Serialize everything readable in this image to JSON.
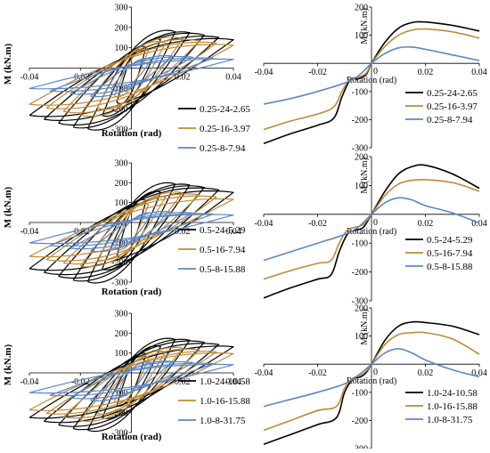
{
  "chart_data": [
    {
      "id": "hyst-025",
      "type": "line",
      "style": "hysteresis",
      "xlabel": "Rotation (rad)",
      "ylabel": "M (kN.m)",
      "xlim": [
        -0.04,
        0.04
      ],
      "ylim": [
        -300,
        300
      ],
      "xticks": [
        -0.04,
        -0.02,
        0.02,
        0.04
      ],
      "yticks": [
        -300,
        -200,
        -100,
        100,
        200,
        300
      ],
      "xtick_labels": [
        "-0.04",
        "-0.02",
        "0.02",
        "0.04"
      ],
      "ytick_labels": [
        "-300",
        "-200",
        "-100",
        "100",
        "200",
        "300"
      ],
      "grid": false,
      "legend_position": "bottom-right",
      "series": [
        {
          "name": "0.25-24-2.65",
          "color": "#000000",
          "peak_pos": 180,
          "peak_neg": -300,
          "x_at_peak": 0.02,
          "cycles": 7
        },
        {
          "name": "0.25-16-3.97",
          "color": "#c08a34",
          "peak_pos": 145,
          "peak_neg": -230,
          "x_at_peak": 0.02,
          "cycles": 6
        },
        {
          "name": "0.25-8-7.94",
          "color": "#5b86c8",
          "peak_pos": 60,
          "peak_neg": -140,
          "x_at_peak": 0.015,
          "cycles": 5
        }
      ]
    },
    {
      "id": "env-025",
      "type": "line",
      "xlabel": "Rotation (rad)",
      "ylabel": "M (kN.m)",
      "xlim": [
        -0.04,
        0.04
      ],
      "ylim": [
        -300,
        200
      ],
      "xticks": [
        -0.04,
        -0.02,
        0.02,
        0.04
      ],
      "yticks": [
        -300,
        -200,
        -100,
        100,
        200
      ],
      "xtick_labels": [
        "-0.04",
        "-0.02",
        "0.02",
        "0.04"
      ],
      "ytick_labels": [
        "-300",
        "-200",
        "-100",
        "100",
        "200"
      ],
      "zero_label": "0",
      "grid": false,
      "legend_position": "bottom-right",
      "series": [
        {
          "name": "0.25-24-2.65",
          "color": "#000000",
          "x": [
            -0.04,
            -0.03,
            -0.02,
            -0.014,
            -0.011,
            -0.008,
            -0.005,
            -0.002,
            0,
            0.005,
            0.01,
            0.015,
            0.02,
            0.03,
            0.04
          ],
          "y": [
            -285,
            -250,
            -220,
            -195,
            -120,
            -60,
            -55,
            -40,
            0,
            75,
            125,
            145,
            147,
            135,
            115
          ]
        },
        {
          "name": "0.25-16-3.97",
          "color": "#c08a34",
          "x": [
            -0.04,
            -0.03,
            -0.02,
            -0.014,
            -0.011,
            -0.008,
            -0.005,
            -0.002,
            0,
            0.005,
            0.01,
            0.015,
            0.02,
            0.03,
            0.04
          ],
          "y": [
            -235,
            -205,
            -180,
            -155,
            -100,
            -55,
            -50,
            -35,
            0,
            60,
            100,
            118,
            122,
            112,
            90
          ]
        },
        {
          "name": "0.25-8-7.94",
          "color": "#5b86c8",
          "x": [
            -0.04,
            -0.03,
            -0.02,
            -0.01,
            -0.005,
            0,
            0.005,
            0.01,
            0.015,
            0.02,
            0.03,
            0.04
          ],
          "y": [
            -145,
            -125,
            -100,
            -70,
            -45,
            0,
            35,
            55,
            58,
            50,
            30,
            10
          ]
        }
      ]
    },
    {
      "id": "hyst-05",
      "type": "line",
      "style": "hysteresis",
      "xlabel": "Rotation (rad)",
      "ylabel": "M (kN.m)",
      "xlim": [
        -0.04,
        0.04
      ],
      "ylim": [
        -300,
        300
      ],
      "xticks": [
        -0.04,
        -0.02,
        0.02,
        0.04
      ],
      "yticks": [
        -300,
        -200,
        -100,
        100,
        200,
        300
      ],
      "xtick_labels": [
        "-0.04",
        "-0.02",
        "0.02",
        "0.04"
      ],
      "ytick_labels": [
        "-300",
        "-200",
        "-100",
        "100",
        "200",
        "300"
      ],
      "grid": false,
      "legend_position": "bottom-right",
      "series": [
        {
          "name": "0.5-24-5.29",
          "color": "#000000",
          "peak_pos": 195,
          "peak_neg": -300,
          "x_at_peak": 0.02,
          "cycles": 7
        },
        {
          "name": "0.5-16-7.94",
          "color": "#c08a34",
          "peak_pos": 150,
          "peak_neg": -220,
          "x_at_peak": 0.02,
          "cycles": 6
        },
        {
          "name": "0.5-8-15.88",
          "color": "#5b86c8",
          "peak_pos": 55,
          "peak_neg": -150,
          "x_at_peak": 0.012,
          "cycles": 5
        }
      ]
    },
    {
      "id": "env-05",
      "type": "line",
      "xlabel": "Rotation (rad)",
      "ylabel": "M (kN.m)",
      "xlim": [
        -0.04,
        0.04
      ],
      "ylim": [
        -300,
        200
      ],
      "xticks": [
        -0.04,
        -0.02,
        0.02,
        0.04
      ],
      "yticks": [
        -300,
        -200,
        -100,
        100,
        200
      ],
      "xtick_labels": [
        "-0.04",
        "-0.02",
        "0.02",
        "0.04"
      ],
      "ytick_labels": [
        "-300",
        "-200",
        "-100",
        "100",
        "200"
      ],
      "zero_label": "0",
      "grid": false,
      "legend_position": "bottom-right",
      "series": [
        {
          "name": "0.5-24-5.29",
          "color": "#000000",
          "x": [
            -0.04,
            -0.03,
            -0.02,
            -0.015,
            -0.012,
            -0.009,
            -0.006,
            -0.003,
            0,
            0.005,
            0.01,
            0.015,
            0.02,
            0.03,
            0.04
          ],
          "y": [
            -290,
            -255,
            -225,
            -210,
            -130,
            -70,
            -55,
            -45,
            0,
            80,
            140,
            165,
            170,
            140,
            90
          ]
        },
        {
          "name": "0.5-16-7.94",
          "color": "#c08a34",
          "x": [
            -0.04,
            -0.03,
            -0.02,
            -0.015,
            -0.012,
            -0.009,
            -0.006,
            -0.003,
            0,
            0.005,
            0.01,
            0.015,
            0.02,
            0.03,
            0.04
          ],
          "y": [
            -225,
            -195,
            -170,
            -160,
            -100,
            -55,
            -45,
            -35,
            0,
            65,
            105,
            118,
            120,
            110,
            80
          ]
        },
        {
          "name": "0.5-8-15.88",
          "color": "#5b86c8",
          "x": [
            -0.04,
            -0.03,
            -0.02,
            -0.01,
            -0.005,
            0,
            0.005,
            0.01,
            0.015,
            0.02,
            0.03,
            0.04
          ],
          "y": [
            -160,
            -130,
            -100,
            -70,
            -45,
            0,
            40,
            57,
            50,
            30,
            5,
            -30
          ]
        }
      ]
    },
    {
      "id": "hyst-10",
      "type": "line",
      "style": "hysteresis",
      "xlabel": "Rotation (rad)",
      "ylabel": "M (kN.m)",
      "xlim": [
        -0.04,
        0.04
      ],
      "ylim": [
        -300,
        300
      ],
      "xticks": [
        -0.04,
        -0.02,
        0.02,
        0.04
      ],
      "yticks": [
        -300,
        -200,
        -100,
        100,
        200,
        300
      ],
      "xtick_labels": [
        "-0.04",
        "-0.02",
        "0.02",
        "0.04"
      ],
      "ytick_labels": [
        "-300",
        "-200",
        "-100",
        "100",
        "200",
        "300"
      ],
      "grid": false,
      "legend_position": "bottom-right",
      "series": [
        {
          "name": "1.0-24-10.58",
          "color": "#000000",
          "peak_pos": 170,
          "peak_neg": -290,
          "x_at_peak": 0.02,
          "cycles": 7
        },
        {
          "name": "1.0-16-15.88",
          "color": "#c08a34",
          "peak_pos": 125,
          "peak_neg": -240,
          "x_at_peak": 0.02,
          "cycles": 6
        },
        {
          "name": "1.0-8-31.75",
          "color": "#5b86c8",
          "peak_pos": 60,
          "peak_neg": -145,
          "x_at_peak": 0.012,
          "cycles": 5
        }
      ]
    },
    {
      "id": "env-10",
      "type": "line",
      "xlabel": "Rotation (rad)",
      "ylabel": "M (kN.m)",
      "xlim": [
        -0.04,
        0.04
      ],
      "ylim": [
        -300,
        200
      ],
      "xticks": [
        -0.04,
        -0.02,
        0.02,
        0.04
      ],
      "yticks": [
        -300,
        -200,
        -100,
        100,
        200
      ],
      "xtick_labels": [
        "-0.04",
        "-0.02",
        "0.02",
        "0.04"
      ],
      "ytick_labels": [
        "-300",
        "-200",
        "-100",
        "100",
        "200"
      ],
      "zero_label": "0",
      "grid": false,
      "legend_position": "bottom-right",
      "series": [
        {
          "name": "1.0-24-10.58",
          "color": "#000000",
          "x": [
            -0.04,
            -0.03,
            -0.02,
            -0.013,
            -0.01,
            -0.007,
            -0.004,
            -0.002,
            0,
            0.005,
            0.01,
            0.015,
            0.02,
            0.03,
            0.04
          ],
          "y": [
            -285,
            -250,
            -215,
            -190,
            -100,
            -55,
            -45,
            -30,
            0,
            85,
            135,
            150,
            148,
            135,
            105
          ]
        },
        {
          "name": "1.0-16-15.88",
          "color": "#c08a34",
          "x": [
            -0.04,
            -0.03,
            -0.02,
            -0.013,
            -0.01,
            -0.007,
            -0.004,
            -0.002,
            0,
            0.005,
            0.01,
            0.015,
            0.02,
            0.03,
            0.04
          ],
          "y": [
            -235,
            -200,
            -165,
            -150,
            -85,
            -50,
            -40,
            -25,
            0,
            70,
            105,
            112,
            112,
            90,
            35
          ]
        },
        {
          "name": "1.0-8-31.75",
          "color": "#5b86c8",
          "x": [
            -0.04,
            -0.03,
            -0.02,
            -0.01,
            -0.005,
            0,
            0.005,
            0.01,
            0.015,
            0.02,
            0.03,
            0.04
          ],
          "y": [
            -150,
            -125,
            -100,
            -70,
            -40,
            0,
            40,
            55,
            40,
            15,
            -20,
            -45
          ]
        }
      ]
    }
  ]
}
